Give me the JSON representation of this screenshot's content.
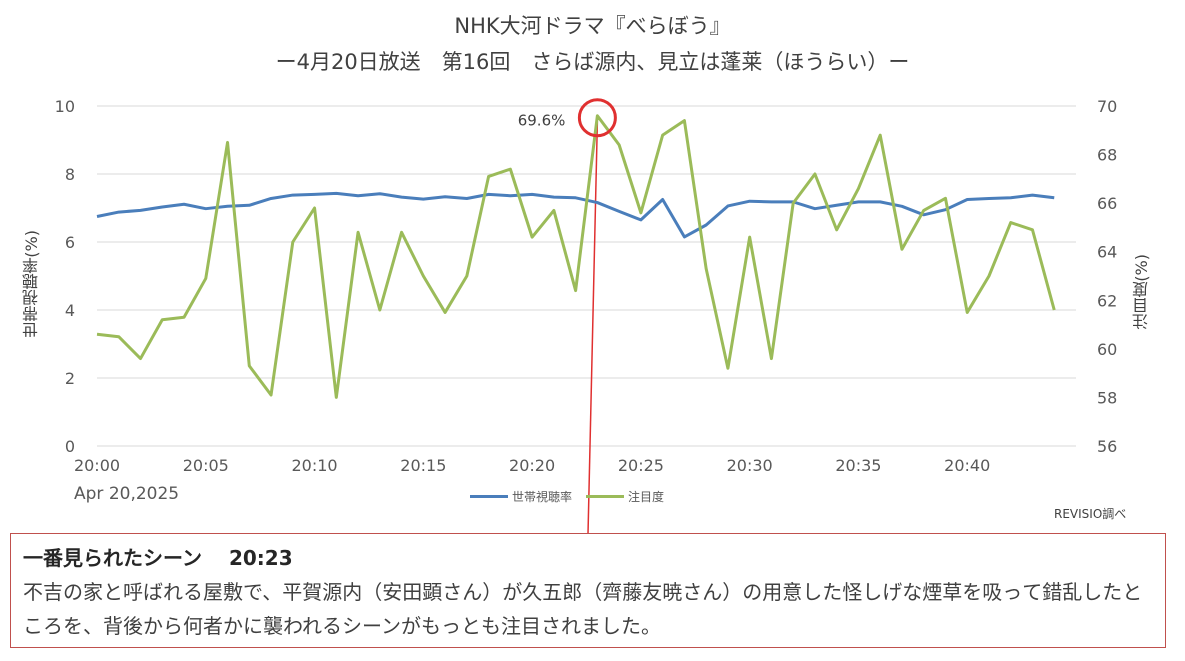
{
  "title_line1": "NHK大河ドラマ『べらぼう』",
  "title_line2": "ー4月20日放送　第16回　さらば源内、見立は蓬莱（ほうらい）ー",
  "date_label": "Apr 20,2025",
  "source_label": "REVISIO調べ",
  "note": {
    "heading": "一番見られたシーン",
    "time": "20:23",
    "body": "不吉の家と呼ばれる屋敷で、平賀源内（安田顕さん）が久五郎（齊藤友暁さん）の用意した怪しげな煙草を吸って錯乱したところを、背後から何者かに襲われるシーンがもっとも注目されました。"
  },
  "chart_data": {
    "type": "line",
    "xlabel": "",
    "ylabel_left": "世帯視聴率(%)",
    "ylabel_right": "注目度(%)",
    "x_ticks": [
      "20:00",
      "20:05",
      "20:10",
      "20:15",
      "20:20",
      "20:25",
      "20:30",
      "20:35",
      "20:40"
    ],
    "ylim_left": [
      0,
      10
    ],
    "yticks_left": [
      0,
      2,
      4,
      6,
      8,
      10
    ],
    "ylim_right": [
      56,
      70
    ],
    "yticks_right": [
      56,
      58,
      60,
      62,
      64,
      66,
      68,
      70
    ],
    "grid": true,
    "legend_position": "bottom",
    "peak_annotation": {
      "x_minute": 23,
      "label": "69.6%"
    },
    "series": [
      {
        "name": "世帯視聴率",
        "axis": "left",
        "color": "#4a7ebb",
        "x_minutes": [
          0,
          1,
          2,
          3,
          4,
          5,
          6,
          7,
          8,
          9,
          10,
          11,
          12,
          13,
          14,
          15,
          16,
          17,
          18,
          19,
          20,
          21,
          22,
          23,
          24,
          25,
          26,
          27,
          28,
          29,
          30,
          31,
          32,
          33,
          34,
          35,
          36,
          37,
          38,
          39,
          40,
          41,
          42,
          43,
          44
        ],
        "values": [
          6.75,
          6.88,
          6.93,
          7.03,
          7.11,
          6.98,
          7.05,
          7.08,
          7.28,
          7.38,
          7.4,
          7.43,
          7.36,
          7.42,
          7.32,
          7.26,
          7.33,
          7.28,
          7.4,
          7.36,
          7.4,
          7.32,
          7.3,
          7.16,
          6.9,
          6.65,
          7.25,
          6.15,
          6.5,
          7.06,
          7.2,
          7.18,
          7.18,
          6.98,
          7.08,
          7.18,
          7.18,
          7.05,
          6.8,
          6.95,
          7.25,
          7.28,
          7.3,
          7.38,
          7.3
        ]
      },
      {
        "name": "注目度",
        "axis": "right",
        "color": "#9bbb59",
        "x_minutes": [
          0,
          1,
          2,
          3,
          4,
          5,
          6,
          7,
          8,
          9,
          10,
          11,
          12,
          13,
          14,
          15,
          16,
          17,
          18,
          19,
          20,
          21,
          22,
          23,
          24,
          25,
          26,
          27,
          28,
          29,
          30,
          31,
          32,
          33,
          34,
          35,
          36,
          37,
          38,
          39,
          40,
          41,
          42,
          43,
          44
        ],
        "values": [
          60.6,
          60.5,
          59.6,
          61.2,
          61.3,
          62.9,
          68.5,
          59.3,
          58.1,
          64.4,
          65.8,
          58.0,
          64.8,
          61.6,
          64.8,
          63.0,
          61.5,
          63.0,
          67.1,
          67.4,
          64.6,
          65.7,
          62.4,
          69.6,
          68.4,
          65.6,
          68.8,
          69.4,
          63.3,
          59.2,
          64.6,
          59.6,
          66.0,
          67.2,
          64.9,
          66.6,
          68.8,
          64.1,
          65.7,
          66.2,
          61.5,
          63.0,
          65.2,
          64.9,
          61.6
        ]
      }
    ]
  }
}
